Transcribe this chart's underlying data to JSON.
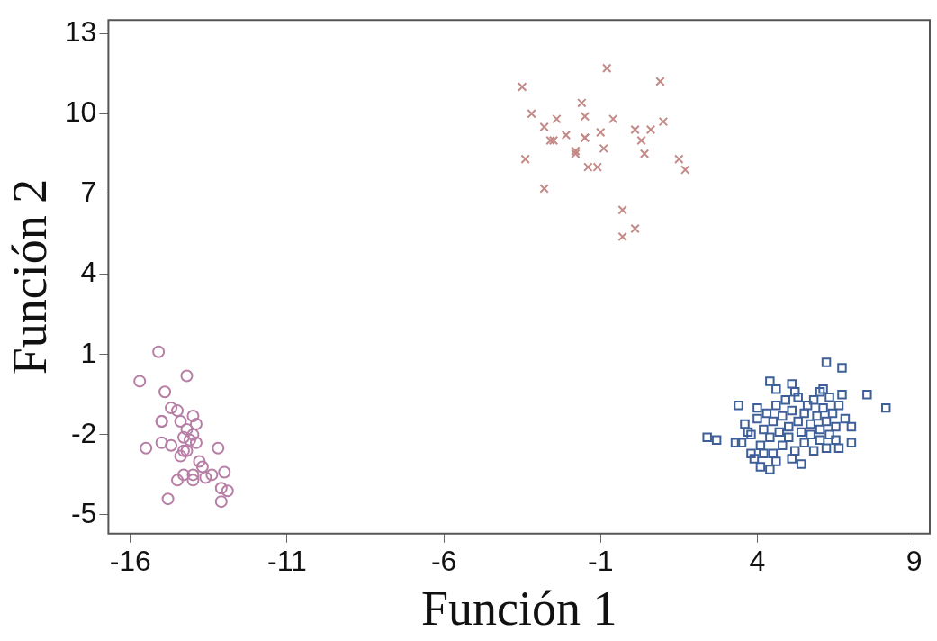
{
  "chart_data": {
    "type": "scatter",
    "xlabel": "Función 1",
    "ylabel": "Función 2",
    "xlim": [
      -16.7,
      9.5
    ],
    "ylim": [
      -5.7,
      13.5
    ],
    "xticks": [
      -16,
      -11,
      -6,
      -1,
      4,
      9
    ],
    "yticks": [
      -5,
      -2,
      1,
      4,
      7,
      10,
      13
    ],
    "grid": false,
    "legend": false,
    "series": [
      {
        "color": "#c48a88",
        "marker": "cross",
        "x": [
          -3.5,
          -3.4,
          -3.2,
          -2.8,
          -2.8,
          -2.4,
          -2.6,
          -2.5,
          -2.1,
          -1.8,
          -1.8,
          -1.6,
          -1.5,
          -1.5,
          -1.5,
          -1.4,
          -1.1,
          -1.0,
          -0.9,
          -0.8,
          -0.6,
          -0.3,
          -0.3,
          0.1,
          0.1,
          0.3,
          0.4,
          0.6,
          0.9,
          1.0,
          1.5,
          1.7
        ],
        "values": [
          11.0,
          8.3,
          10.0,
          7.2,
          9.5,
          9.8,
          9.0,
          9.0,
          9.2,
          8.5,
          8.6,
          10.4,
          9.9,
          9.1,
          9.1,
          8.0,
          8.0,
          9.3,
          8.7,
          11.7,
          9.8,
          6.4,
          5.4,
          5.7,
          9.4,
          9.0,
          8.5,
          9.4,
          11.2,
          9.7,
          8.3,
          7.9
        ]
      },
      {
        "color": "#b77fa6",
        "marker": "circle",
        "x": [
          -15.1,
          -15.7,
          -14.2,
          -14.9,
          -14.7,
          -14.5,
          -15.0,
          -15.0,
          -14.0,
          -14.4,
          -13.9,
          -14.2,
          -14.3,
          -14.0,
          -14.1,
          -13.9,
          -15.5,
          -15.0,
          -14.7,
          -14.3,
          -14.2,
          -14.4,
          -13.2,
          -13.8,
          -13.7,
          -14.3,
          -14.5,
          -14.0,
          -14.0,
          -13.6,
          -13.4,
          -13.0,
          -13.1,
          -12.9,
          -14.8,
          -13.1
        ],
        "values": [
          1.1,
          0.0,
          0.2,
          -0.4,
          -1.0,
          -1.1,
          -1.5,
          -1.5,
          -1.3,
          -1.5,
          -1.6,
          -1.8,
          -2.1,
          -2.0,
          -2.2,
          -2.3,
          -2.5,
          -2.3,
          -2.4,
          -2.6,
          -2.6,
          -2.8,
          -2.5,
          -3.0,
          -3.2,
          -3.5,
          -3.7,
          -3.5,
          -3.7,
          -3.6,
          -3.5,
          -3.4,
          -4.0,
          -4.1,
          -4.4,
          -4.5
        ]
      },
      {
        "color": "#3e5f98",
        "marker": "square",
        "x": [
          6.2,
          6.7,
          4.4,
          5.1,
          7.5,
          8.1,
          3.4,
          2.4,
          2.7,
          7.0,
          6.6,
          4.1,
          4.4,
          5.4,
          3.3,
          3.8,
          4.6,
          6.1,
          6.7,
          6.8,
          7.0,
          3.6,
          3.8,
          4.0,
          4.1,
          4.2,
          4.3,
          4.4,
          4.5,
          4.5,
          4.6,
          4.7,
          4.8,
          4.8,
          4.9,
          5.0,
          5.0,
          5.1,
          5.2,
          5.3,
          5.3,
          5.4,
          5.5,
          5.5,
          5.6,
          5.7,
          5.7,
          5.8,
          5.9,
          6.0,
          6.0,
          6.1,
          6.2,
          6.3,
          6.3,
          6.4,
          6.5,
          6.6,
          4.2,
          3.9,
          4.6,
          5.1,
          5.8,
          6.2,
          3.5,
          4.0,
          5.2,
          6.0,
          6.5,
          3.7
        ],
        "values": [
          0.7,
          0.5,
          0.0,
          -0.1,
          -0.5,
          -1.0,
          -0.9,
          -2.1,
          -2.2,
          -2.3,
          -2.5,
          -3.2,
          -3.3,
          -3.1,
          -2.3,
          -2.7,
          -0.3,
          -0.3,
          -0.5,
          -1.4,
          -1.7,
          -1.6,
          -2.0,
          -1.4,
          -2.4,
          -1.8,
          -1.2,
          -2.1,
          -2.7,
          -1.5,
          -0.9,
          -1.9,
          -2.4,
          -1.3,
          -0.7,
          -1.7,
          -2.1,
          -1.1,
          -2.6,
          -1.5,
          -0.6,
          -1.9,
          -2.3,
          -1.2,
          -0.9,
          -1.6,
          -2.0,
          -0.7,
          -1.3,
          -1.8,
          -2.2,
          -1.0,
          -1.5,
          -0.6,
          -2.0,
          -1.2,
          -1.7,
          -0.9,
          -2.7,
          -2.9,
          -3.0,
          -2.9,
          -2.6,
          -2.5,
          -2.3,
          -1.0,
          -0.4,
          -0.4,
          -2.2,
          -1.9
        ]
      }
    ]
  }
}
